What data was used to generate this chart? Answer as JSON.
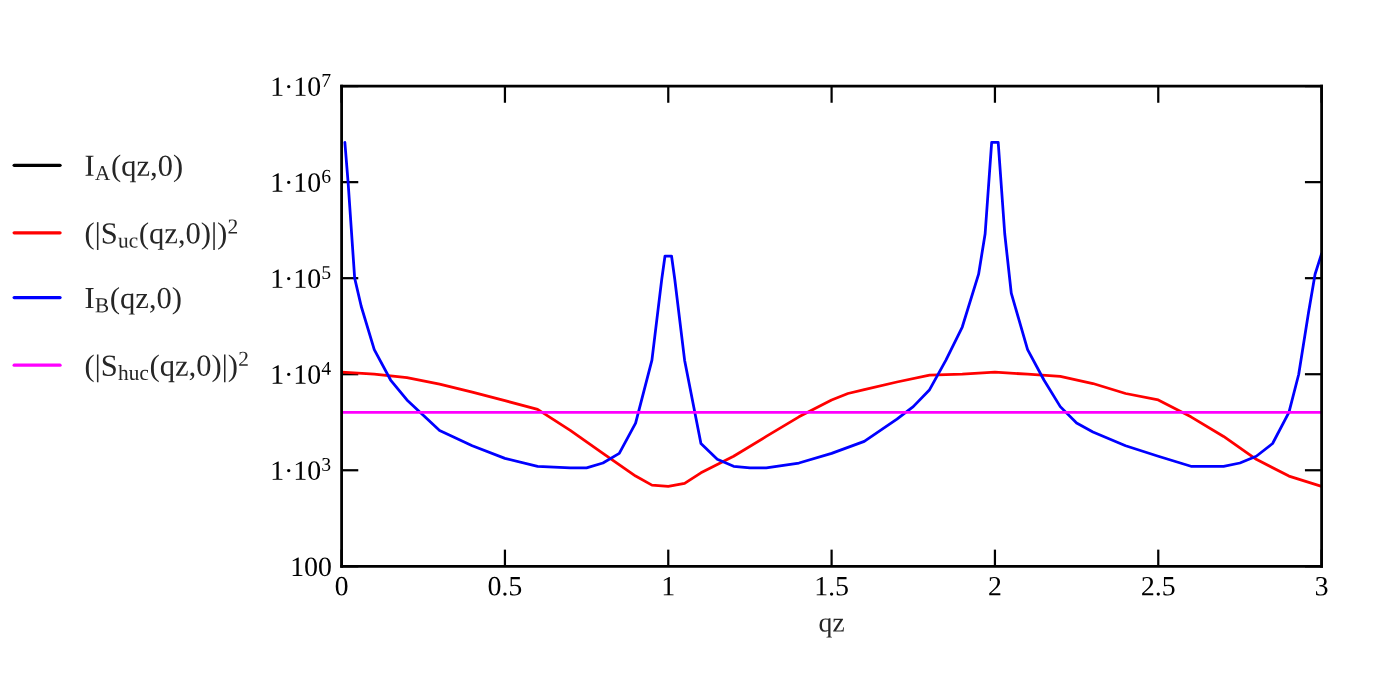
{
  "chart_data": {
    "type": "line",
    "xlabel": "qz",
    "xlim": [
      0,
      3
    ],
    "xticks": [
      0,
      0.5,
      1,
      1.5,
      2,
      2.5,
      3
    ],
    "ylim": [
      100,
      10000000
    ],
    "log": true,
    "yticks": [
      {
        "value": 100,
        "label": "100"
      },
      {
        "value": 1000,
        "label": "1·10$^{3}$"
      },
      {
        "value": 10000,
        "label": "1·10$^{4}$"
      },
      {
        "value": 100000,
        "label": "1·10$^{5}$"
      },
      {
        "value": 1000000,
        "label": "1·10$^{6}$"
      },
      {
        "value": 10000000,
        "label": "1·10$^{7}$"
      }
    ],
    "grid": false,
    "legend": "left",
    "line_style": "solid",
    "marker": "none",
    "series": [
      {
        "name": "I$_{A}$(qz,0)",
        "color": "#000000"
      },
      {
        "name": "(|S$_{uc}$(qz,0)|)$^{2}$",
        "color": "#ff0000",
        "x": [
          0,
          0.1,
          0.2,
          0.3,
          0.4,
          0.5,
          0.6,
          0.7,
          0.8,
          0.9,
          0.95,
          1,
          1.05,
          1.1,
          1.2,
          1.3,
          1.4,
          1.5,
          1.55,
          1.6,
          1.7,
          1.8,
          1.9,
          2,
          2.1,
          2.2,
          2.3,
          2.4,
          2.5,
          2.6,
          2.7,
          2.8,
          2.9,
          3
        ],
        "values": [
          10500,
          10000,
          9200,
          7900,
          6500,
          5300,
          4300,
          2600,
          1500,
          870,
          700,
          680,
          730,
          940,
          1400,
          2250,
          3600,
          5400,
          6300,
          6900,
          8300,
          9800,
          10000,
          10500,
          10000,
          9500,
          8000,
          6300,
          5400,
          3600,
          2250,
          1300,
          870,
          680
        ]
      },
      {
        "name": "I$_{B}$(qz,0)",
        "color": "#0000ff",
        "x": [
          0.01,
          0.02,
          0.04,
          0.06,
          0.1,
          0.15,
          0.2,
          0.3,
          0.4,
          0.5,
          0.6,
          0.7,
          0.75,
          0.8,
          0.85,
          0.9,
          0.95,
          0.98,
          0.99,
          1.01,
          1.02,
          1.05,
          1.1,
          1.15,
          1.2,
          1.25,
          1.3,
          1.4,
          1.5,
          1.6,
          1.7,
          1.75,
          1.8,
          1.85,
          1.9,
          1.95,
          1.97,
          1.99,
          2.01,
          2.03,
          2.05,
          2.1,
          2.15,
          2.2,
          2.25,
          2.3,
          2.4,
          2.5,
          2.6,
          2.7,
          2.75,
          2.8,
          2.85,
          2.9,
          2.93,
          2.96,
          2.98,
          3
        ],
        "values": [
          2600000,
          980000,
          100000,
          51000,
          18000,
          8700,
          5400,
          2600,
          1800,
          1330,
          1100,
          1060,
          1060,
          1190,
          1500,
          3100,
          14000,
          97000,
          170000,
          170000,
          97000,
          14000,
          1900,
          1300,
          1100,
          1060,
          1060,
          1190,
          1500,
          2000,
          3400,
          4600,
          6900,
          14000,
          31000,
          110000,
          290000,
          2600000,
          2600000,
          290000,
          70000,
          18000,
          8700,
          4600,
          3100,
          2500,
          1800,
          1400,
          1100,
          1100,
          1190,
          1400,
          1900,
          4000,
          10000,
          44000,
          110000,
          180000
        ]
      },
      {
        "name": "(|S$_{huc}$(qz,0)|)$^{2}$",
        "color": "#ff00ff",
        "x": [
          0,
          3
        ],
        "values": [
          4000,
          4000
        ]
      }
    ]
  }
}
